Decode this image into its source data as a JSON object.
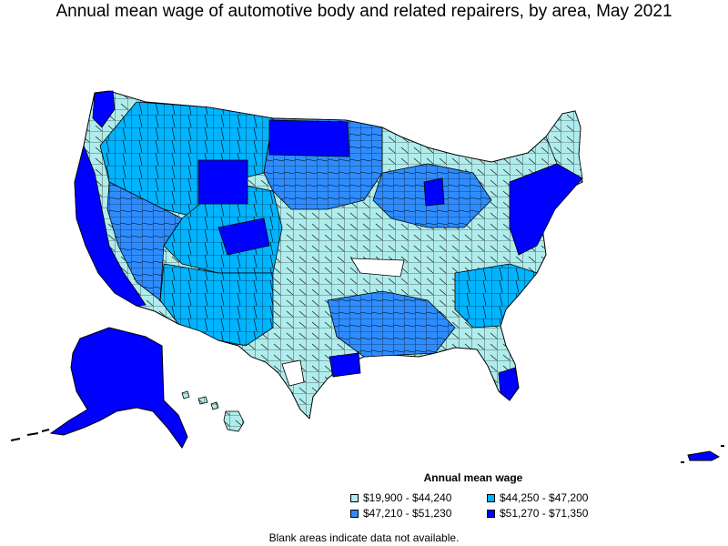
{
  "title": "Annual mean wage of automotive body and related repairers, by area, May 2021",
  "legend": {
    "title": "Annual mean wage",
    "items": [
      {
        "label": "$19,900 - $44,240",
        "color": "#b0ecec"
      },
      {
        "label": "$44,250 - $47,200",
        "color": "#00b4ff"
      },
      {
        "label": "$47,210 - $51,230",
        "color": "#2e8cff"
      },
      {
        "label": "$51,270 - $71,350",
        "color": "#0000ff"
      }
    ]
  },
  "note": "Blank areas indicate data not available.",
  "colors": {
    "outline": "#000000",
    "no_data": "#ffffff"
  }
}
